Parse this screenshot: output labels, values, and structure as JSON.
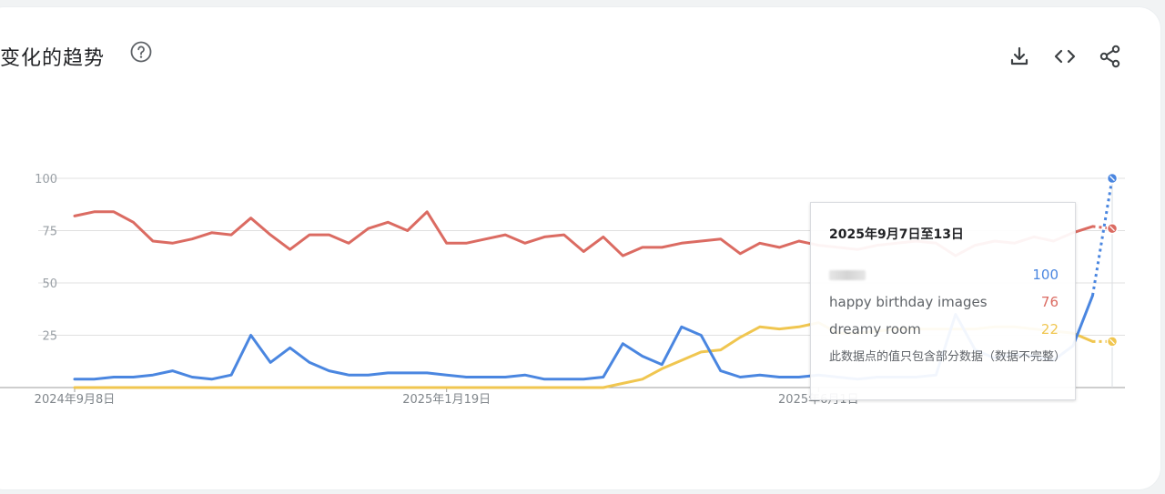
{
  "header": {
    "title": "变化的趋势",
    "help_icon": "help-circle-icon",
    "actions": [
      {
        "name": "download-button",
        "icon": "download-icon"
      },
      {
        "name": "embed-button",
        "icon": "code-icon"
      },
      {
        "name": "share-button",
        "icon": "share-icon"
      }
    ]
  },
  "colors": {
    "series_blurred": "#4a86e0",
    "happy_birthday_images": "#db6b62",
    "dreamy_room": "#f0c650",
    "grid": "#e0e0e0",
    "axis_text": "#9aa0a6"
  },
  "chart_data": {
    "type": "line",
    "ylim": [
      0,
      100
    ],
    "y_ticks": [
      "100",
      "75",
      "50",
      "25"
    ],
    "x_tick_labels": [
      "2024年9月8日",
      "2025年1月19日",
      "2025年6月1日"
    ],
    "x_tick_indices": [
      0,
      19,
      38
    ],
    "grid": true,
    "partial_from_index": 53,
    "series": [
      {
        "key": "blurred",
        "values": [
          4,
          4,
          5,
          5,
          6,
          8,
          5,
          4,
          6,
          25,
          12,
          19,
          12,
          8,
          6,
          6,
          7,
          7,
          7,
          6,
          5,
          5,
          5,
          6,
          4,
          4,
          4,
          5,
          21,
          15,
          11,
          29,
          25,
          8,
          5,
          6,
          5,
          5,
          6,
          5,
          4,
          5,
          5,
          5,
          6,
          35,
          18,
          14,
          16,
          15,
          13,
          20,
          44,
          100
        ]
      },
      {
        "key": "happy_birthday_images",
        "values": [
          82,
          84,
          84,
          79,
          70,
          69,
          71,
          74,
          73,
          81,
          73,
          66,
          73,
          73,
          69,
          76,
          79,
          75,
          84,
          69,
          69,
          71,
          73,
          69,
          72,
          73,
          65,
          72,
          63,
          67,
          67,
          69,
          70,
          71,
          64,
          69,
          67,
          70,
          68,
          67,
          66,
          68,
          69,
          70,
          69,
          63,
          68,
          70,
          69,
          72,
          70,
          74,
          77,
          76
        ]
      },
      {
        "key": "dreamy_room",
        "values": [
          0,
          0,
          0,
          0,
          0,
          0,
          0,
          0,
          0,
          0,
          0,
          0,
          0,
          0,
          0,
          0,
          0,
          0,
          0,
          0,
          0,
          0,
          0,
          0,
          0,
          0,
          0,
          0,
          2,
          4,
          9,
          13,
          17,
          18,
          24,
          29,
          28,
          29,
          31,
          26,
          26,
          27,
          28,
          28,
          28,
          28,
          28,
          29,
          29,
          28,
          27,
          26,
          22,
          22
        ]
      }
    ]
  },
  "tooltip": {
    "date": "2025年9月7日至13日",
    "rows": [
      {
        "label": "",
        "value": "100",
        "color": "#4a86e0"
      },
      {
        "label": "happy birthday images",
        "value": "76",
        "color": "#db6b62"
      },
      {
        "label": "dreamy room",
        "value": "22",
        "color": "#f0c650"
      }
    ],
    "note": "此数据点的值只包含部分数据（数据不完整）"
  }
}
